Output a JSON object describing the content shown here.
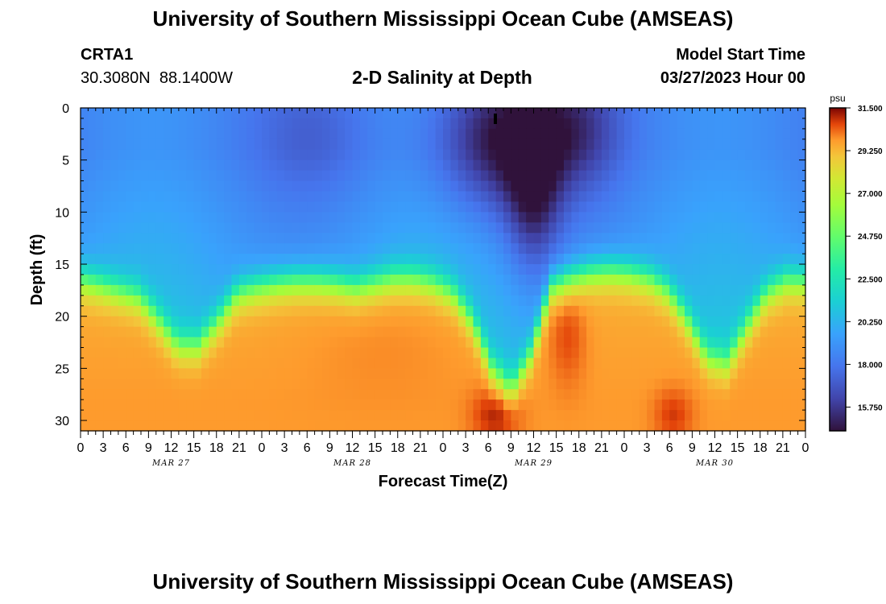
{
  "header": {
    "title": "University of Southern Mississippi Ocean Cube (AMSEAS)",
    "station_id": "CRTA1",
    "station_coords": "30.3080N  88.1400W",
    "plot_title": "2-D Salinity at Depth",
    "model_start_label": "Model Start Time",
    "model_start_value": "03/27/2023 Hour 00"
  },
  "footer": {
    "title": "University of Southern Mississippi Ocean Cube (AMSEAS)"
  },
  "chart_data": {
    "type": "heatmap",
    "title": "2-D Salinity at Depth",
    "xlabel": "Forecast Time(Z)",
    "ylabel": "Depth (ft)",
    "x_range_hours": [
      0,
      96
    ],
    "y_range_ft": [
      0,
      31
    ],
    "y_ticks": [
      "0",
      "5",
      "10",
      "15",
      "20",
      "25",
      "30"
    ],
    "x_ticks": [
      "0",
      "3",
      "6",
      "9",
      "12",
      "15",
      "18",
      "21",
      "0",
      "3",
      "6",
      "9",
      "12",
      "15",
      "18",
      "21",
      "0",
      "3",
      "6",
      "9",
      "12",
      "15",
      "18",
      "21",
      "0",
      "3",
      "6",
      "9",
      "12",
      "15",
      "18",
      "21",
      "0"
    ],
    "day_labels": [
      "MAR 27",
      "MAR 28",
      "MAR 29",
      "MAR 30"
    ],
    "colorbar": {
      "unit": "psu",
      "min": 14.5,
      "max": 31.5,
      "labels": [
        "31.500",
        "29.250",
        "27.000",
        "24.750",
        "22.500",
        "20.250",
        "18.000",
        "15.750"
      ]
    },
    "surface_salinity_psu": 18.5,
    "deep_salinity_psu": 29.8,
    "halocline_depth_ft": [
      16.5,
      17.0,
      17.6,
      18.2,
      20.5,
      22.8,
      22.8,
      20.5,
      17.8,
      17.2,
      16.8,
      16.6,
      16.6,
      16.8,
      17.2,
      16.8,
      16.3,
      16.3,
      16.8,
      17.8,
      20.5,
      25.0,
      27.0,
      23.5,
      17.2,
      16.3,
      15.8,
      15.6,
      15.8,
      16.3,
      17.6,
      20.5,
      24.0,
      24.5,
      21.0,
      17.8,
      16.6,
      16.6
    ]
  }
}
